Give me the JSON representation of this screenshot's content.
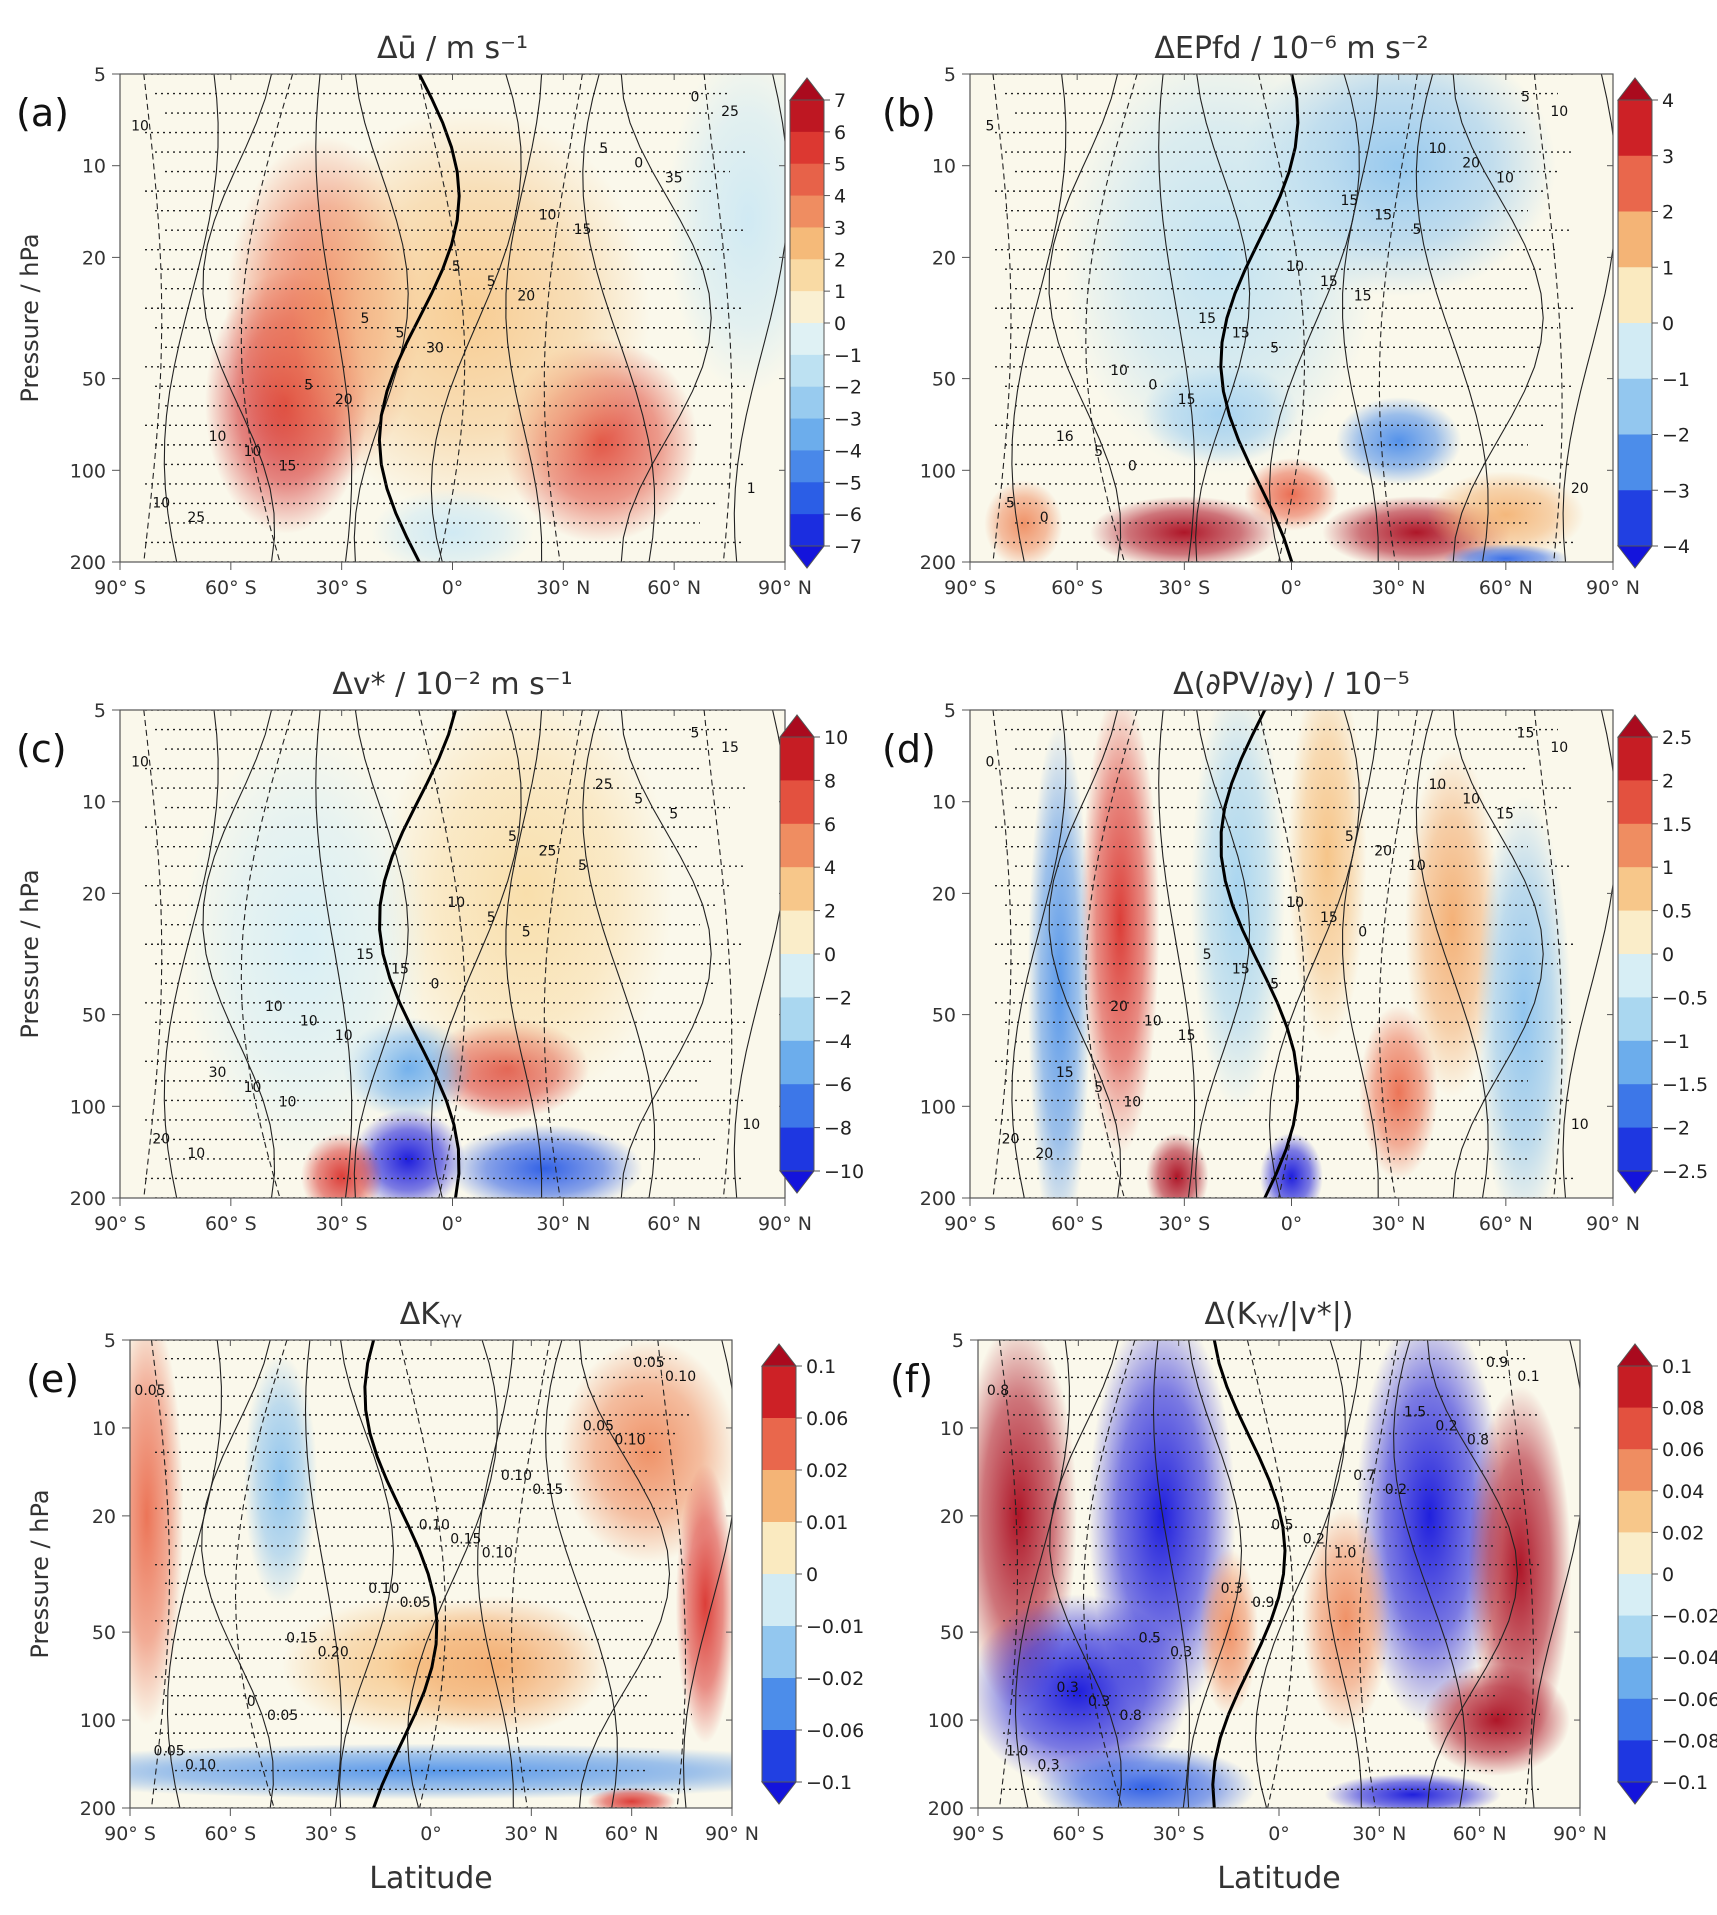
{
  "chart_data": [
    {
      "type": "heatmap",
      "panel": "(a)",
      "title": "Δū  /  m s⁻¹",
      "xlabel": "",
      "ylabel": "Pressure  /  hPa",
      "xticks": [
        "90° S",
        "60° S",
        "30° S",
        "0°",
        "30° N",
        "60° N",
        "90° N"
      ],
      "yticks": [
        "5",
        "10",
        "20",
        "50",
        "100",
        "200"
      ],
      "xlim": [
        -90,
        90
      ],
      "ylim": [
        200,
        5
      ],
      "colorbar_ticks": [
        "7",
        "6",
        "5",
        "4",
        "3",
        "2",
        "1",
        "0",
        "−1",
        "−2",
        "−3",
        "−4",
        "−5",
        "−6",
        "−7"
      ],
      "contour_labels": [
        "10",
        "20",
        "15",
        "35",
        "30",
        "25",
        "15",
        "20",
        "25",
        "5",
        "10",
        "0",
        "5",
        "10",
        "10",
        "5",
        "0",
        "5",
        "10",
        "5",
        "5",
        "1"
      ],
      "features": [
        {
          "lat": -45,
          "p": 60,
          "value": 6,
          "sigma_lat": 10,
          "sigma_p": 0.9
        },
        {
          "lat": -35,
          "p": 30,
          "value": 4,
          "sigma_lat": 12,
          "sigma_p": 1.2
        },
        {
          "lat": 40,
          "p": 80,
          "value": 5,
          "sigma_lat": 12,
          "sigma_p": 0.7
        },
        {
          "lat": 5,
          "p": 30,
          "value": 2,
          "sigma_lat": 22,
          "sigma_p": 1.4
        },
        {
          "lat": 0,
          "p": 160,
          "value": -1,
          "sigma_lat": 10,
          "sigma_p": 0.3
        },
        {
          "lat": 80,
          "p": 15,
          "value": -1,
          "sigma_lat": 10,
          "sigma_p": 1.2
        }
      ]
    },
    {
      "type": "heatmap",
      "panel": "(b)",
      "title": "ΔEPfd  /  10⁻⁶ m s⁻²",
      "xlabel": "",
      "ylabel": "",
      "xticks": [
        "90° S",
        "60° S",
        "30° S",
        "0°",
        "30° N",
        "60° N",
        "90° N"
      ],
      "yticks": [
        "5",
        "10",
        "20",
        "50",
        "100",
        "200"
      ],
      "xlim": [
        -90,
        90
      ],
      "ylim": [
        200,
        5
      ],
      "colorbar_ticks": [
        "4",
        "3",
        "2",
        "1",
        "0",
        "−1",
        "−2",
        "−3",
        "−4"
      ],
      "contour_labels": [
        "5",
        "15",
        "0",
        "10",
        "5",
        "0",
        "5",
        "15",
        "10",
        "15",
        "5",
        "20",
        "15",
        "5",
        "15",
        "0",
        "5",
        "10",
        "16",
        "10",
        "15",
        "20",
        "15",
        "10"
      ],
      "features": [
        {
          "lat": -30,
          "p": 160,
          "value": 4,
          "sigma_lat": 12,
          "sigma_p": 0.25
        },
        {
          "lat": 35,
          "p": 160,
          "value": 4,
          "sigma_lat": 12,
          "sigma_p": 0.25
        },
        {
          "lat": 0,
          "p": 120,
          "value": 2.5,
          "sigma_lat": 6,
          "sigma_p": 0.25
        },
        {
          "lat": -75,
          "p": 150,
          "value": 2,
          "sigma_lat": 5,
          "sigma_p": 0.3
        },
        {
          "lat": 60,
          "p": 140,
          "value": 1.5,
          "sigma_lat": 10,
          "sigma_p": 0.3
        },
        {
          "lat": 30,
          "p": 80,
          "value": -2.5,
          "sigma_lat": 8,
          "sigma_p": 0.3
        },
        {
          "lat": -20,
          "p": 65,
          "value": -1.5,
          "sigma_lat": 10,
          "sigma_p": 0.35
        },
        {
          "lat": 30,
          "p": 10,
          "value": -1.5,
          "sigma_lat": 20,
          "sigma_p": 0.9
        },
        {
          "lat": 60,
          "p": 195,
          "value": -3,
          "sigma_lat": 8,
          "sigma_p": 0.1
        },
        {
          "lat": -20,
          "p": 20,
          "value": -0.8,
          "sigma_lat": 20,
          "sigma_p": 1.5
        }
      ]
    },
    {
      "type": "heatmap",
      "panel": "(c)",
      "title": "Δv*  /  10⁻² m s⁻¹",
      "xlabel": "",
      "ylabel": "Pressure  /  hPa",
      "xticks": [
        "90° S",
        "60° S",
        "30° S",
        "0°",
        "30° N",
        "60° N",
        "90° N"
      ],
      "yticks": [
        "5",
        "10",
        "20",
        "50",
        "100",
        "200"
      ],
      "xlim": [
        -90,
        90
      ],
      "ylim": [
        200,
        5
      ],
      "colorbar_ticks": [
        "10",
        "8",
        "6",
        "4",
        "2",
        "0",
        "−2",
        "−4",
        "−6",
        "−8",
        "−10"
      ],
      "contour_labels": [
        "10",
        "5",
        "10",
        "5",
        "0",
        "10",
        "5",
        "10",
        "15",
        "5",
        "10",
        "5",
        "15",
        "20",
        "25",
        "10",
        "5",
        "10",
        "30",
        "25",
        "15",
        "10",
        "5",
        "10"
      ],
      "features": [
        {
          "lat": -12,
          "p": 150,
          "value": -10,
          "sigma_lat": 7,
          "sigma_p": 0.35
        },
        {
          "lat": 25,
          "p": 160,
          "value": -8,
          "sigma_lat": 12,
          "sigma_p": 0.3
        },
        {
          "lat": -30,
          "p": 170,
          "value": 8,
          "sigma_lat": 5,
          "sigma_p": 0.3
        },
        {
          "lat": 15,
          "p": 75,
          "value": 8,
          "sigma_lat": 10,
          "sigma_p": 0.35
        },
        {
          "lat": -12,
          "p": 75,
          "value": -5,
          "sigma_lat": 8,
          "sigma_p": 0.35
        },
        {
          "lat": 20,
          "p": 20,
          "value": 2,
          "sigma_lat": 18,
          "sigma_p": 1.5
        },
        {
          "lat": -40,
          "p": 30,
          "value": -1,
          "sigma_lat": 15,
          "sigma_p": 1.5
        }
      ]
    },
    {
      "type": "heatmap",
      "panel": "(d)",
      "title": "Δ(∂PV/∂y)  /  10⁻⁵",
      "xlabel": "",
      "ylabel": "",
      "xticks": [
        "90° S",
        "60° S",
        "30° S",
        "0°",
        "30° N",
        "60° N",
        "90° N"
      ],
      "yticks": [
        "5",
        "10",
        "20",
        "50",
        "100",
        "200"
      ],
      "xlim": [
        -90,
        90
      ],
      "ylim": [
        200,
        5
      ],
      "colorbar_ticks": [
        "2.5",
        "2",
        "1.5",
        "1",
        "0.5",
        "0",
        "−0.5",
        "−1",
        "−1.5",
        "−2",
        "−2.5"
      ],
      "contour_labels": [
        "0",
        "0",
        "10",
        "15",
        "5",
        "20",
        "10",
        "15",
        "10",
        "15",
        "5",
        "10",
        "15",
        "20",
        "20",
        "10",
        "15",
        "10",
        "15",
        "10",
        "5",
        "10",
        "5",
        "20"
      ],
      "features": [
        {
          "lat": -48,
          "p": 25,
          "value": 2,
          "sigma_lat": 5,
          "sigma_p": 1.6
        },
        {
          "lat": -32,
          "p": 170,
          "value": 2.5,
          "sigma_lat": 4,
          "sigma_p": 0.3
        },
        {
          "lat": -65,
          "p": 40,
          "value": -1.5,
          "sigma_lat": 4,
          "sigma_p": 1.8
        },
        {
          "lat": 0,
          "p": 170,
          "value": -2.5,
          "sigma_lat": 4,
          "sigma_p": 0.3
        },
        {
          "lat": 30,
          "p": 90,
          "value": 1.5,
          "sigma_lat": 5,
          "sigma_p": 0.6
        },
        {
          "lat": 45,
          "p": 25,
          "value": 1,
          "sigma_lat": 6,
          "sigma_p": 1.2
        },
        {
          "lat": 65,
          "p": 50,
          "value": -1,
          "sigma_lat": 6,
          "sigma_p": 1.5
        },
        {
          "lat": -15,
          "p": 20,
          "value": -0.8,
          "sigma_lat": 6,
          "sigma_p": 1.5
        },
        {
          "lat": 10,
          "p": 15,
          "value": 0.8,
          "sigma_lat": 5,
          "sigma_p": 1.3
        }
      ]
    },
    {
      "type": "heatmap",
      "panel": "(e)",
      "title": "ΔKᵧᵧ",
      "xlabel": "Latitude",
      "ylabel": "Pressure  /  hPa",
      "xticks": [
        "90° S",
        "60° S",
        "30° S",
        "0°",
        "30° N",
        "60° N",
        "90° N"
      ],
      "yticks": [
        "5",
        "10",
        "20",
        "50",
        "100",
        "200"
      ],
      "xlim": [
        -90,
        90
      ],
      "ylim": [
        200,
        5
      ],
      "colorbar_ticks": [
        "0.1",
        "0.06",
        "0.02",
        "0.01",
        "0",
        "−0.01",
        "−0.02",
        "−0.06",
        "−0.1"
      ],
      "contour_labels": [
        "0.05",
        "0.10",
        "0.05",
        "0.10",
        "0.05",
        "0.10",
        "0.15",
        "0.20",
        "0.10",
        "0.15",
        "0",
        "0.05",
        "0.10",
        "0.05",
        "0.10",
        "0.15",
        "0.05",
        "0.10"
      ],
      "features": [
        {
          "lat": -85,
          "p": 20,
          "value": 0.06,
          "sigma_lat": 5,
          "sigma_p": 1.5
        },
        {
          "lat": 65,
          "p": 12,
          "value": 0.05,
          "sigma_lat": 12,
          "sigma_p": 0.8
        },
        {
          "lat": 82,
          "p": 40,
          "value": 0.08,
          "sigma_lat": 4,
          "sigma_p": 1.0
        },
        {
          "lat": -5,
          "p": 65,
          "value": 0.03,
          "sigma_lat": 18,
          "sigma_p": 0.5
        },
        {
          "lat": 20,
          "p": 65,
          "value": 0.04,
          "sigma_lat": 15,
          "sigma_p": 0.5
        },
        {
          "lat": -45,
          "p": 15,
          "value": -0.04,
          "sigma_lat": 5,
          "sigma_p": 0.9
        },
        {
          "lat": 0,
          "p": 150,
          "value": -0.06,
          "sigma_lat": 60,
          "sigma_p": 0.2
        },
        {
          "lat": 60,
          "p": 190,
          "value": 0.08,
          "sigma_lat": 6,
          "sigma_p": 0.1
        }
      ]
    },
    {
      "type": "heatmap",
      "panel": "(f)",
      "title": "Δ(Kᵧᵧ/|v*|)",
      "xlabel": "Latitude",
      "ylabel": "",
      "xticks": [
        "90° S",
        "60° S",
        "30° S",
        "0°",
        "30° N",
        "60° N",
        "90° N"
      ],
      "yticks": [
        "5",
        "10",
        "20",
        "50",
        "100",
        "200"
      ],
      "xlim": [
        -90,
        90
      ],
      "ylim": [
        200,
        5
      ],
      "colorbar_ticks": [
        "0.1",
        "0.08",
        "0.06",
        "0.04",
        "0.02",
        "0",
        "−0.02",
        "−0.04",
        "−0.06",
        "−0.08",
        "−0.1"
      ],
      "contour_labels": [
        "0.8",
        "1.0",
        "0.8",
        "0.8",
        "0.9",
        "0.3",
        "0.2",
        "0.3",
        "0.1",
        "0.2",
        "0.3",
        "0.2",
        "0.3",
        "1.0",
        "0.7",
        "0.5",
        "0.9",
        "0.5",
        "0.3",
        "1.5"
      ],
      "features": [
        {
          "lat": -78,
          "p": 20,
          "value": 0.12,
          "sigma_lat": 8,
          "sigma_p": 1.4
        },
        {
          "lat": -35,
          "p": 20,
          "value": -0.12,
          "sigma_lat": 10,
          "sigma_p": 1.5
        },
        {
          "lat": 45,
          "p": 20,
          "value": -0.12,
          "sigma_lat": 10,
          "sigma_p": 1.5
        },
        {
          "lat": 72,
          "p": 30,
          "value": 0.1,
          "sigma_lat": 7,
          "sigma_p": 1.3
        },
        {
          "lat": -60,
          "p": 80,
          "value": -0.1,
          "sigma_lat": 15,
          "sigma_p": 0.7
        },
        {
          "lat": 65,
          "p": 100,
          "value": 0.1,
          "sigma_lat": 10,
          "sigma_p": 0.4
        },
        {
          "lat": 20,
          "p": 45,
          "value": 0.05,
          "sigma_lat": 6,
          "sigma_p": 0.8
        },
        {
          "lat": -15,
          "p": 50,
          "value": 0.05,
          "sigma_lat": 4,
          "sigma_p": 0.6
        },
        {
          "lat": 40,
          "p": 180,
          "value": -0.1,
          "sigma_lat": 12,
          "sigma_p": 0.15
        },
        {
          "lat": -40,
          "p": 170,
          "value": -0.08,
          "sigma_lat": 15,
          "sigma_p": 0.3
        }
      ]
    }
  ]
}
